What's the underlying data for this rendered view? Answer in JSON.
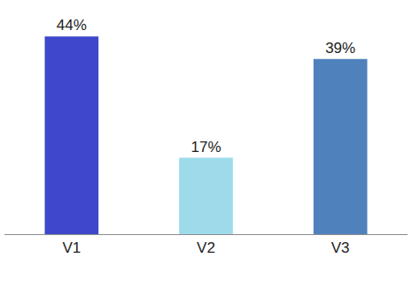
{
  "chart_data": {
    "type": "bar",
    "categories": [
      "V1",
      "V2",
      "V3"
    ],
    "values": [
      44,
      17,
      39
    ],
    "value_labels": [
      "44%",
      "17%",
      "39%"
    ],
    "colors": [
      "#3f48cc",
      "#9ddbea",
      "#4f81bd"
    ],
    "ylim": [
      0,
      48
    ],
    "data_labels": true,
    "tick_labels": "x",
    "grid": false
  }
}
